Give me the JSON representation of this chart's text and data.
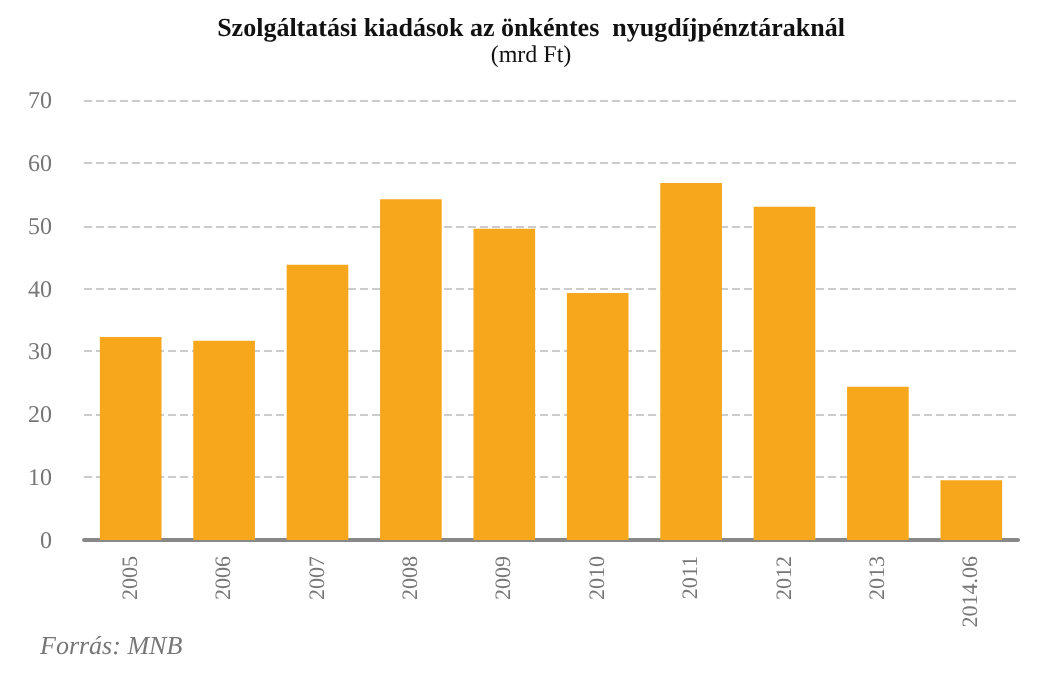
{
  "chart_data": {
    "type": "bar",
    "title": "Szolgáltatási kiadások az önkéntes  nyugdíjpénztáraknál",
    "subtitle": "(mrd Ft)",
    "categories": [
      "2005",
      "2006",
      "2007",
      "2008",
      "2009",
      "2010",
      "2011",
      "2012",
      "2013",
      "2014.06"
    ],
    "values": [
      32.3,
      31.7,
      43.8,
      54.2,
      49.5,
      39.3,
      56.8,
      53.0,
      24.4,
      9.5
    ],
    "color": "#f7a71c",
    "ylim": [
      0,
      70
    ],
    "yticks": [
      0,
      10,
      20,
      30,
      40,
      50,
      60,
      70
    ],
    "grid": "y",
    "annotations": [
      "Forrás: MNB"
    ]
  }
}
